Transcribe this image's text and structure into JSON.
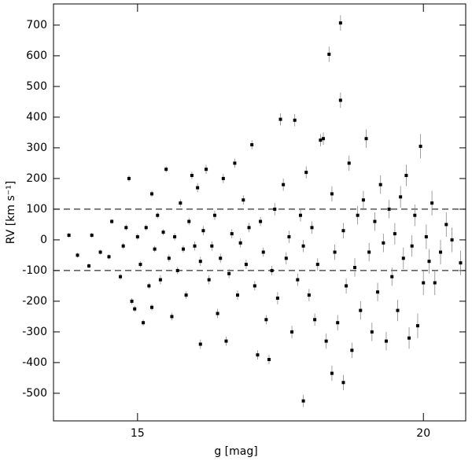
{
  "chart_data": {
    "type": "scatter",
    "x_label": "g [mag]",
    "y_label": "RV [km s⁻¹]",
    "xlim": [
      13.53,
      20.74
    ],
    "ylim": [
      -590,
      769
    ],
    "xticks": [
      15,
      20
    ],
    "yticks": [
      -500,
      -400,
      -300,
      -200,
      -100,
      0,
      100,
      200,
      300,
      400,
      500,
      600,
      700
    ],
    "reference_lines": [
      100,
      -100
    ],
    "series": [
      {
        "color": "#000000",
        "x": [
          13.8,
          13.95,
          14.15,
          14.2,
          14.35,
          14.5,
          14.55,
          14.7,
          14.75,
          14.8,
          14.85,
          14.9,
          14.95,
          15.0,
          15.05,
          15.1,
          15.15,
          15.2,
          15.25,
          15.25,
          15.3,
          15.35,
          15.4,
          15.45,
          15.5,
          15.55,
          15.6,
          15.65,
          15.7,
          15.75,
          15.8,
          15.85,
          15.9,
          15.95,
          16.0,
          16.05,
          16.1,
          16.1,
          16.15,
          16.2,
          16.25,
          16.3,
          16.35,
          16.4,
          16.45,
          16.5,
          16.55,
          16.6,
          16.65,
          16.7,
          16.75,
          16.8,
          16.85,
          16.9,
          16.95,
          17.0,
          17.05,
          17.1,
          17.15,
          17.2,
          17.25,
          17.3,
          17.35,
          17.4,
          17.45,
          17.5,
          17.55,
          17.6,
          17.65,
          17.7,
          17.75,
          17.8,
          17.85,
          17.9,
          17.9,
          17.95,
          18.0,
          18.05,
          18.1,
          18.15,
          18.2,
          18.25,
          18.3,
          18.35,
          18.4,
          18.4,
          18.45,
          18.5,
          18.55,
          18.55,
          18.6,
          18.6,
          18.65,
          18.7,
          18.75,
          18.8,
          18.85,
          18.9,
          18.95,
          19.0,
          19.05,
          19.1,
          19.15,
          19.2,
          19.25,
          19.3,
          19.35,
          19.4,
          19.45,
          19.5,
          19.55,
          19.6,
          19.65,
          19.7,
          19.75,
          19.8,
          19.85,
          19.9,
          19.95,
          20.0,
          20.05,
          20.1,
          20.15,
          20.2,
          20.3,
          20.4,
          20.5,
          20.65
        ],
        "values": [
          15,
          -50,
          -85,
          15,
          -40,
          -55,
          60,
          -120,
          -20,
          40,
          200,
          -200,
          -225,
          10,
          -80,
          -270,
          40,
          -150,
          -220,
          150,
          -30,
          80,
          -130,
          25,
          230,
          -60,
          -250,
          10,
          -100,
          120,
          -30,
          -180,
          60,
          210,
          -20,
          170,
          -340,
          -70,
          30,
          230,
          -130,
          -20,
          80,
          -240,
          -60,
          200,
          -330,
          -110,
          20,
          250,
          -180,
          -10,
          130,
          -80,
          40,
          310,
          -150,
          -375,
          60,
          -40,
          -260,
          -390,
          -100,
          100,
          -190,
          393,
          180,
          -60,
          10,
          -300,
          390,
          -130,
          80,
          -525,
          -20,
          220,
          -180,
          40,
          -260,
          -80,
          325,
          330,
          -330,
          605,
          -435,
          150,
          -40,
          -270,
          707,
          455,
          -465,
          30,
          -150,
          250,
          -360,
          -90,
          80,
          -230,
          130,
          330,
          -40,
          -300,
          60,
          -170,
          180,
          -10,
          -330,
          100,
          -120,
          20,
          -230,
          140,
          -60,
          210,
          -320,
          -20,
          80,
          -280,
          305,
          -140,
          10,
          -70,
          120,
          -140,
          -40,
          50,
          0,
          -75
        ],
        "errors": [
          8,
          8,
          8,
          8,
          8,
          8,
          8,
          10,
          10,
          10,
          10,
          10,
          10,
          10,
          10,
          10,
          10,
          10,
          10,
          10,
          10,
          10,
          15,
          10,
          10,
          12,
          12,
          12,
          12,
          12,
          12,
          12,
          12,
          12,
          15,
          15,
          15,
          15,
          15,
          15,
          15,
          15,
          15,
          15,
          15,
          15,
          15,
          15,
          15,
          15,
          15,
          15,
          15,
          15,
          15,
          15,
          15,
          15,
          15,
          15,
          15,
          15,
          15,
          20,
          20,
          20,
          20,
          20,
          20,
          20,
          20,
          20,
          20,
          20,
          20,
          20,
          20,
          20,
          20,
          20,
          20,
          20,
          25,
          25,
          25,
          25,
          25,
          25,
          25,
          25,
          25,
          25,
          25,
          25,
          25,
          30,
          30,
          30,
          30,
          30,
          30,
          30,
          30,
          30,
          30,
          30,
          30,
          30,
          30,
          35,
          35,
          35,
          35,
          35,
          35,
          35,
          35,
          40,
          40,
          40,
          40,
          40,
          40,
          40,
          40,
          40,
          40,
          40
        ]
      }
    ]
  }
}
